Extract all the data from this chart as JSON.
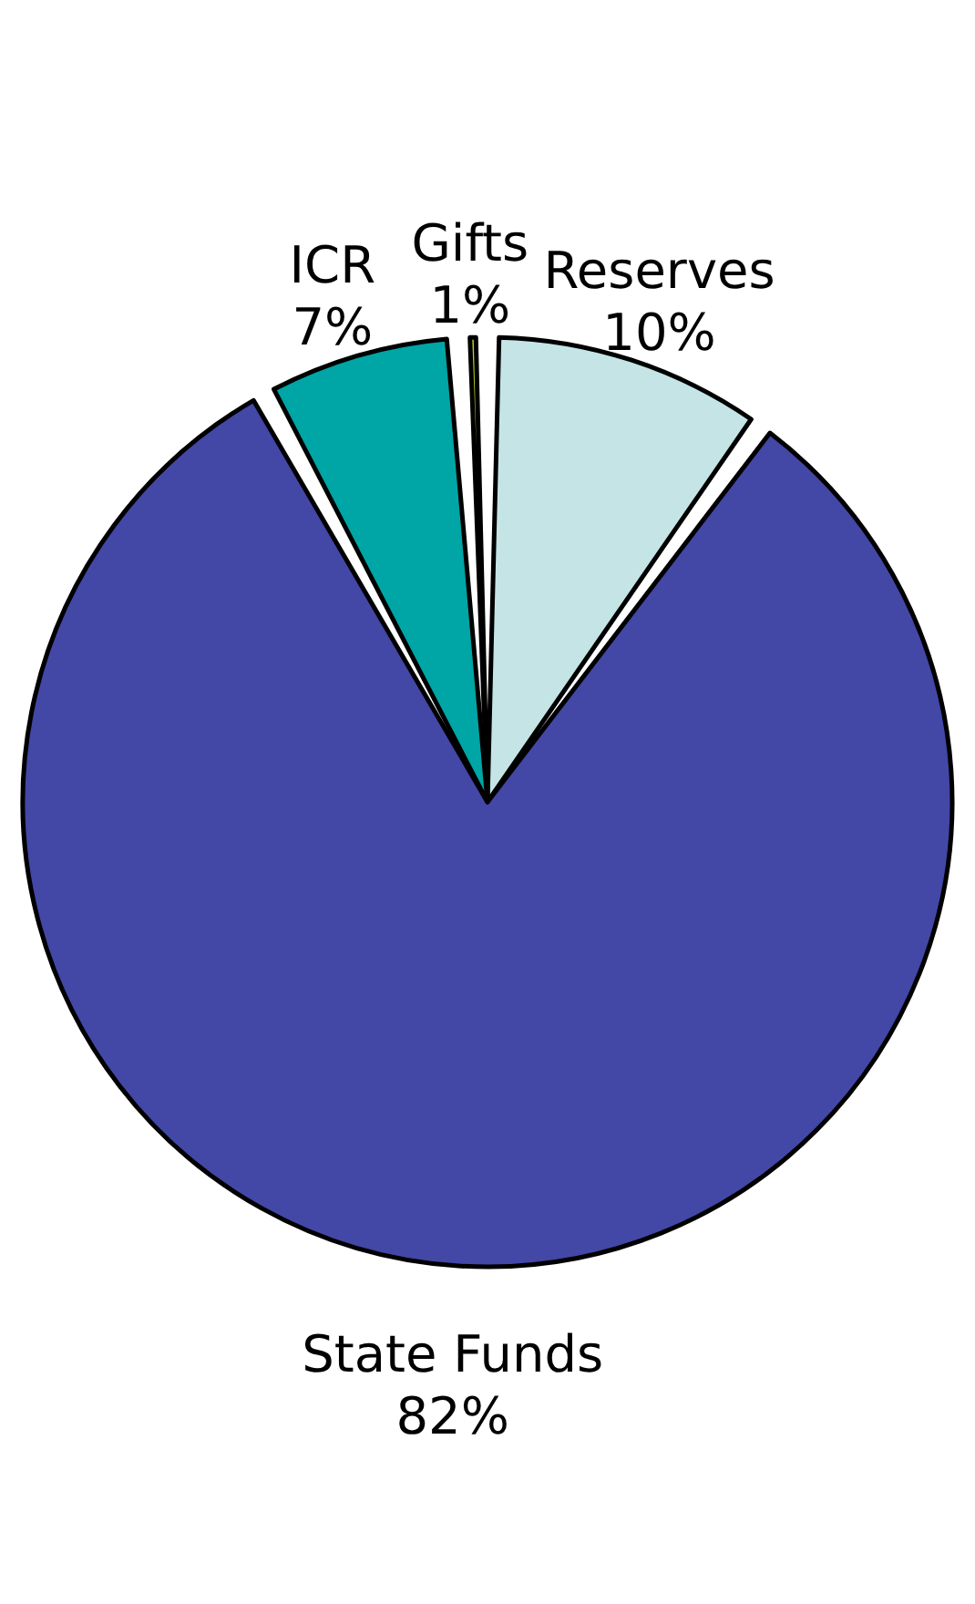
{
  "chart_data": {
    "type": "pie",
    "categories": [
      "Reserves",
      "State Funds",
      "ICR",
      "Gifts"
    ],
    "values": [
      10,
      82,
      7,
      1
    ],
    "colors": [
      "#c5e4e6",
      "#4347a6",
      "#00a5a5",
      "#b5d61a"
    ],
    "value_labels": [
      "10%",
      "82%",
      "7%",
      "1%"
    ]
  }
}
